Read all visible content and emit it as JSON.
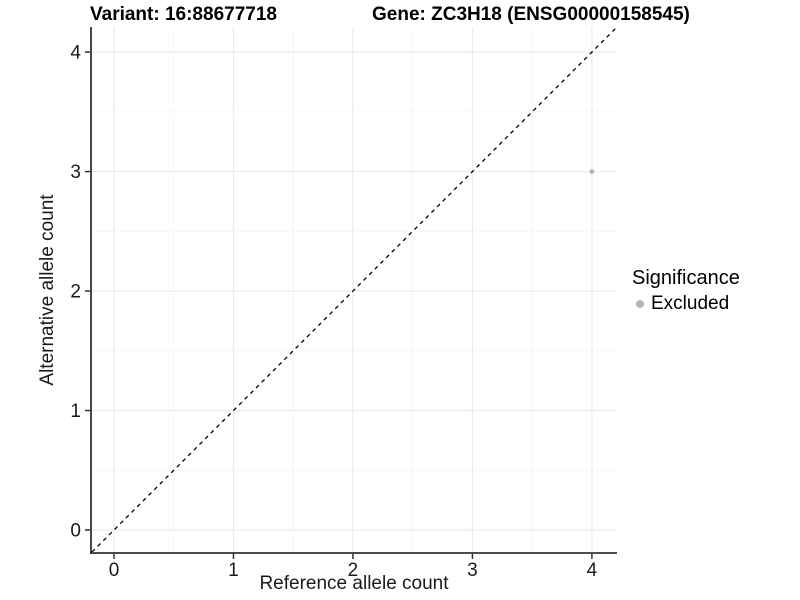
{
  "chart_data": {
    "type": "scatter",
    "titles": {
      "left": "Variant: 16:88677718",
      "right": "Gene: ZC3H18 (ENSG00000158545)"
    },
    "xlabel": "Reference allele count",
    "ylabel": "Alternative allele count",
    "xlim": [
      -0.184,
      4.21
    ],
    "ylim": [
      -0.184,
      4.21
    ],
    "x_ticks": [
      0,
      1,
      2,
      3,
      4
    ],
    "y_ticks": [
      0,
      1,
      2,
      3,
      4
    ],
    "minor_grid_step": 0.5,
    "grid": true,
    "identity_line": {
      "equation": "y = x",
      "style": "dashed",
      "color": "#000000"
    },
    "series": [
      {
        "name": "Excluded",
        "color": "#b5b5b5",
        "points": [
          {
            "x": 4,
            "y": 3
          }
        ]
      }
    ],
    "legend": {
      "title": "Significance",
      "position": "right",
      "items": [
        {
          "label": "Excluded",
          "color": "#b5b5b5",
          "marker": "circle"
        }
      ]
    },
    "colors": {
      "background": "#ffffff",
      "grid_major": "#ebebeb",
      "grid_minor": "#f5f5f5",
      "axis_line": "#333333",
      "tick_label": "#1a1a1a"
    }
  }
}
